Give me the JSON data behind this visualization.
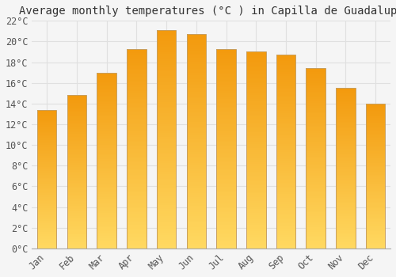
{
  "title": "Average monthly temperatures (°C ) in Capilla de Guadalupe",
  "months": [
    "Jan",
    "Feb",
    "Mar",
    "Apr",
    "May",
    "Jun",
    "Jul",
    "Aug",
    "Sep",
    "Oct",
    "Nov",
    "Dec"
  ],
  "values": [
    13.4,
    14.8,
    17.0,
    19.3,
    21.1,
    20.7,
    19.3,
    19.0,
    18.7,
    17.4,
    15.5,
    14.0
  ],
  "bar_color_top": "#FFD060",
  "bar_color_bottom": "#F0A000",
  "bar_edge_color": "#C8A060",
  "background_color": "#f5f5f5",
  "plot_bg_color": "#f5f5f5",
  "grid_color": "#e0e0e0",
  "ylim": [
    0,
    22
  ],
  "ytick_step": 2,
  "title_fontsize": 10,
  "tick_fontsize": 8.5,
  "font_family": "monospace"
}
